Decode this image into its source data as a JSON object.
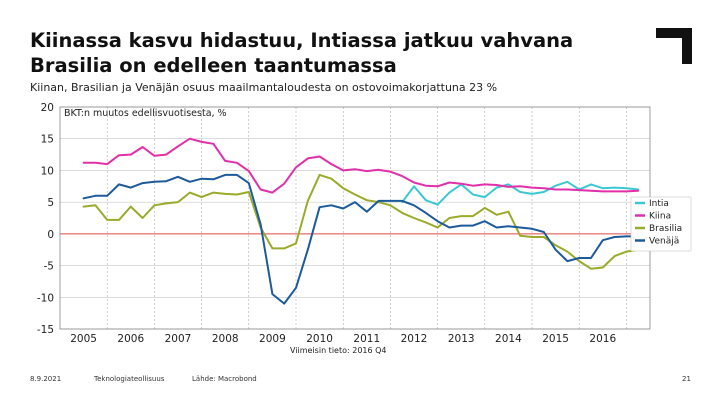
{
  "slide": {
    "title_line1": "Kiinassa kasvu hidastuu, Intiassa jatkuu vahvana",
    "title_line2": "Brasilia on edelleen taantumassa",
    "subtitle": "Kiinan, Brasilian ja Venäjän osuus maailmantaloudesta on ostovoimakorjattuna 23 %",
    "footer": {
      "date": "8.9.2021",
      "org": "Teknologiateollisuus",
      "source": "Lähde: Macrobond",
      "page": "21"
    }
  },
  "chart_data": {
    "type": "line",
    "title": "BKT:n muutos edellisvuotisesta, %",
    "note": "Viimeisin tieto: 2016 Q4",
    "xlim": [
      2004.5,
      2017.0
    ],
    "ylim": [
      -15,
      20
    ],
    "yticks": [
      20,
      15,
      10,
      5,
      0,
      -5,
      -10,
      -15
    ],
    "xticks": [
      "2005",
      "2006",
      "2007",
      "2008",
      "2009",
      "2010",
      "2011",
      "2012",
      "2013",
      "2014",
      "2015",
      "2016"
    ],
    "legend_position": "right",
    "series": [
      {
        "name": "Intia",
        "color": "#3cc8d2",
        "x": [
          2011.75,
          2012.0,
          2012.25,
          2012.5,
          2012.75,
          2013.0,
          2013.25,
          2013.5,
          2013.75,
          2014.0,
          2014.25,
          2014.5,
          2014.75,
          2015.0,
          2015.25,
          2015.5,
          2015.75,
          2016.0,
          2016.25,
          2016.5,
          2016.75
        ],
        "values": [
          5.0,
          7.5,
          5.3,
          4.6,
          6.5,
          7.8,
          6.2,
          5.8,
          7.3,
          7.8,
          6.6,
          6.3,
          6.6,
          7.6,
          8.2,
          7.0,
          7.8,
          7.2,
          7.3,
          7.2,
          7.0
        ]
      },
      {
        "name": "Kiina",
        "color": "#e22fa9",
        "x": [
          2005.0,
          2005.25,
          2005.5,
          2005.75,
          2006.0,
          2006.25,
          2006.5,
          2006.75,
          2007.0,
          2007.25,
          2007.5,
          2007.75,
          2008.0,
          2008.25,
          2008.5,
          2008.75,
          2009.0,
          2009.25,
          2009.5,
          2009.75,
          2010.0,
          2010.25,
          2010.5,
          2010.75,
          2011.0,
          2011.25,
          2011.5,
          2011.75,
          2012.0,
          2012.25,
          2012.5,
          2012.75,
          2013.0,
          2013.25,
          2013.5,
          2013.75,
          2014.0,
          2014.25,
          2014.5,
          2014.75,
          2015.0,
          2015.25,
          2015.5,
          2015.75,
          2016.0,
          2016.25,
          2016.5,
          2016.75
        ],
        "values": [
          11.2,
          11.2,
          11.0,
          12.4,
          12.5,
          13.7,
          12.3,
          12.5,
          13.8,
          15.0,
          14.5,
          14.2,
          11.5,
          11.2,
          9.9,
          7.0,
          6.5,
          7.9,
          10.5,
          11.9,
          12.2,
          11.0,
          10.0,
          10.2,
          9.9,
          10.1,
          9.8,
          9.1,
          8.1,
          7.6,
          7.5,
          8.1,
          7.9,
          7.6,
          7.8,
          7.7,
          7.4,
          7.5,
          7.3,
          7.2,
          7.0,
          7.0,
          6.9,
          6.8,
          6.7,
          6.7,
          6.7,
          6.8
        ]
      },
      {
        "name": "Brasilia",
        "color": "#9aaa2a",
        "x": [
          2005.0,
          2005.25,
          2005.5,
          2005.75,
          2006.0,
          2006.25,
          2006.5,
          2006.75,
          2007.0,
          2007.25,
          2007.5,
          2007.75,
          2008.0,
          2008.25,
          2008.5,
          2008.75,
          2009.0,
          2009.25,
          2009.5,
          2009.75,
          2010.0,
          2010.25,
          2010.5,
          2010.75,
          2011.0,
          2011.25,
          2011.5,
          2011.75,
          2012.0,
          2012.25,
          2012.5,
          2012.75,
          2013.0,
          2013.25,
          2013.5,
          2013.75,
          2014.0,
          2014.25,
          2014.5,
          2014.75,
          2015.0,
          2015.25,
          2015.5,
          2015.75,
          2016.0,
          2016.25,
          2016.5,
          2016.75
        ],
        "values": [
          4.3,
          4.5,
          2.2,
          2.2,
          4.3,
          2.5,
          4.5,
          4.8,
          5.0,
          6.5,
          5.8,
          6.5,
          6.3,
          6.2,
          6.6,
          1.0,
          -2.3,
          -2.3,
          -1.5,
          5.2,
          9.3,
          8.7,
          7.2,
          6.2,
          5.3,
          5.0,
          4.5,
          3.3,
          2.5,
          1.8,
          1.0,
          2.5,
          2.8,
          2.8,
          4.1,
          3.0,
          3.5,
          -0.3,
          -0.5,
          -0.5,
          -1.8,
          -2.8,
          -4.3,
          -5.5,
          -5.3,
          -3.5,
          -2.8,
          -2.5
        ]
      },
      {
        "name": "Venäjä",
        "color": "#1d5a9a",
        "x": [
          2005.0,
          2005.25,
          2005.5,
          2005.75,
          2006.0,
          2006.25,
          2006.5,
          2006.75,
          2007.0,
          2007.25,
          2007.5,
          2007.75,
          2008.0,
          2008.25,
          2008.5,
          2008.75,
          2009.0,
          2009.25,
          2009.5,
          2009.75,
          2010.0,
          2010.25,
          2010.5,
          2010.75,
          2011.0,
          2011.25,
          2011.5,
          2011.75,
          2012.0,
          2012.25,
          2012.5,
          2012.75,
          2013.0,
          2013.25,
          2013.5,
          2013.75,
          2014.0,
          2014.25,
          2014.5,
          2014.75,
          2015.0,
          2015.25,
          2015.5,
          2015.75,
          2016.0,
          2016.25,
          2016.5,
          2016.75
        ],
        "values": [
          5.6,
          6.0,
          6.0,
          7.8,
          7.3,
          8.0,
          8.2,
          8.3,
          9.0,
          8.2,
          8.7,
          8.6,
          9.3,
          9.3,
          8.0,
          1.5,
          -9.5,
          -11.0,
          -8.5,
          -2.5,
          4.2,
          4.5,
          4.0,
          5.0,
          3.5,
          5.2,
          5.2,
          5.2,
          4.5,
          3.3,
          2.0,
          1.0,
          1.3,
          1.3,
          2.0,
          1.0,
          1.2,
          1.0,
          0.8,
          0.3,
          -2.5,
          -4.3,
          -3.8,
          -3.8,
          -1.0,
          -0.5,
          -0.4,
          -0.4
        ]
      }
    ]
  }
}
